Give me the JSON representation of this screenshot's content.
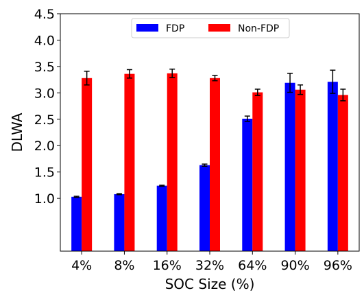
{
  "chart_data": {
    "type": "bar",
    "title": "",
    "xlabel": "SOC Size (%)",
    "ylabel": "DLWA",
    "categories": [
      "4%",
      "8%",
      "16%",
      "32%",
      "64%",
      "90%",
      "96%"
    ],
    "ylim": [
      0.0,
      4.5
    ],
    "yticks": [
      1.0,
      1.5,
      2.0,
      2.5,
      3.0,
      3.5,
      4.0,
      4.5
    ],
    "ytick_labels": [
      "1.0",
      "1.5",
      "2.0",
      "2.5",
      "3.0",
      "3.5",
      "4.0",
      "4.5"
    ],
    "grid": false,
    "legend_position": "top-center",
    "series": [
      {
        "name": "FDP",
        "color": "#0000ff",
        "values": [
          1.03,
          1.08,
          1.24,
          1.63,
          2.51,
          3.19,
          3.21
        ],
        "errors": [
          0.01,
          0.01,
          0.01,
          0.02,
          0.05,
          0.18,
          0.22
        ]
      },
      {
        "name": "Non-FDP",
        "color": "#ff0000",
        "values": [
          3.28,
          3.36,
          3.37,
          3.28,
          3.01,
          3.06,
          2.96
        ],
        "errors": [
          0.13,
          0.08,
          0.08,
          0.05,
          0.06,
          0.09,
          0.11
        ]
      }
    ]
  }
}
